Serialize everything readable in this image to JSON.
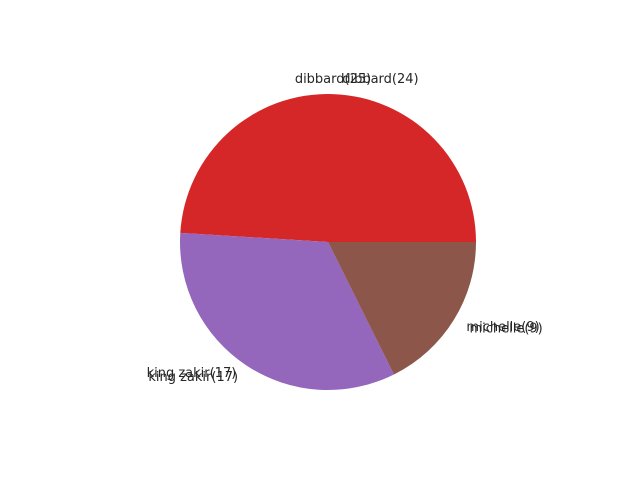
{
  "chart_data": {
    "type": "pie",
    "slices": [
      {
        "label": "dibbard(25)",
        "value": 25,
        "color": "#d62728"
      },
      {
        "label": "king zakir(17)",
        "value": 17,
        "color": "#9467bd"
      },
      {
        "label": "michelle(9)",
        "value": 9,
        "color": "#8c564b"
      }
    ],
    "ghost_labels": [
      {
        "label": "dibbard(24)",
        "value": 24
      },
      {
        "label": "king zakir(17)",
        "value": 17
      },
      {
        "label": "michelle(9)",
        "value": 9
      }
    ],
    "start_angle_deg": 0,
    "direction": "counterclockwise"
  }
}
